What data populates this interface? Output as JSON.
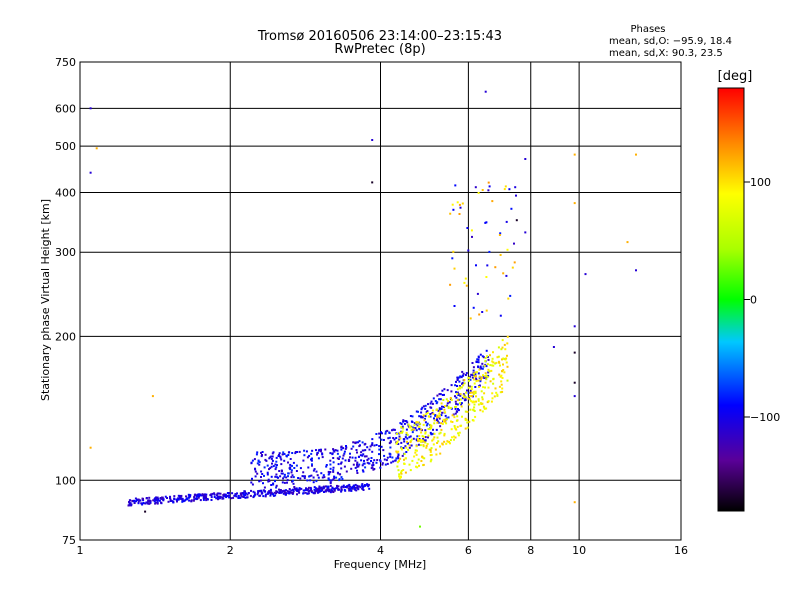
{
  "title": "Tromsø 20160506 23:14:00–23:15:43",
  "subtitle": "RwPretec (8p)",
  "stats": {
    "heading": "Phases",
    "line_o": "mean, sd,O: −95.9, 18.4",
    "line_x": "mean, sd,X:  90.3, 23.5"
  },
  "colorbar": {
    "label": "[deg]",
    "ticks": [
      "100",
      "0",
      "−100"
    ],
    "tick_values": [
      100,
      0,
      -100
    ],
    "range": [
      -180,
      180
    ]
  },
  "chart_data": {
    "type": "scatter",
    "title": "Tromsø 20160506 23:14:00–23:15:43",
    "subtitle": "RwPretec (8p)",
    "xlabel": "Frequency [MHz]",
    "ylabel": "Stationary phase Virtual Height [km]",
    "x_scale": "log2",
    "y_scale": "log",
    "xlim": [
      1,
      16
    ],
    "ylim": [
      75,
      750
    ],
    "x_ticks": [
      "1",
      "2",
      "4",
      "6",
      "8",
      "10",
      "16"
    ],
    "x_tick_values": [
      1,
      2,
      4,
      6,
      8,
      10,
      16
    ],
    "y_ticks": [
      "75",
      "100",
      "200",
      "300",
      "400",
      "500",
      "600",
      "750"
    ],
    "y_tick_values": [
      75,
      100,
      200,
      300,
      400,
      500,
      600,
      750
    ],
    "grid": true,
    "color_by": "phase [deg]",
    "series": [
      {
        "note": "E-layer trace",
        "x_range": [
          1.25,
          3.8
        ],
        "h_range": [
          90,
          97
        ],
        "phase_mean": -105
      },
      {
        "note": "F-layer trace (O)",
        "x_range": [
          2.2,
          6.6
        ],
        "h_range": [
          102,
          230
        ],
        "phase_mean": -100
      },
      {
        "note": "F-layer trace (X)",
        "x_range": [
          4.3,
          7.2
        ],
        "h_range": [
          115,
          200
        ],
        "phase_mean": 90
      },
      {
        "note": "scattered points",
        "points": [
          [
            1.05,
            600,
            -110
          ],
          [
            1.05,
            440,
            -110
          ],
          [
            1.08,
            495,
            120
          ],
          [
            1.05,
            117,
            120
          ],
          [
            1.4,
            150,
            120
          ],
          [
            3.85,
            515,
            -110
          ],
          [
            3.85,
            420,
            -170
          ],
          [
            6.5,
            650,
            -110
          ],
          [
            7.8,
            470,
            -110
          ],
          [
            9.8,
            480,
            120
          ],
          [
            9.8,
            380,
            120
          ],
          [
            13,
            480,
            120
          ],
          [
            12.5,
            315,
            120
          ],
          [
            10.3,
            270,
            -110
          ],
          [
            13,
            275,
            -110
          ],
          [
            9.8,
            210,
            -110
          ],
          [
            9.8,
            185,
            -170
          ],
          [
            9.8,
            160,
            -170
          ],
          [
            9.8,
            150,
            -110
          ],
          [
            8.9,
            190,
            -110
          ],
          [
            9.8,
            90,
            120
          ],
          [
            7.5,
            350,
            -170
          ],
          [
            7.8,
            330,
            -110
          ],
          [
            4.8,
            80,
            30
          ],
          [
            1.35,
            86,
            -170
          ]
        ]
      }
    ]
  }
}
